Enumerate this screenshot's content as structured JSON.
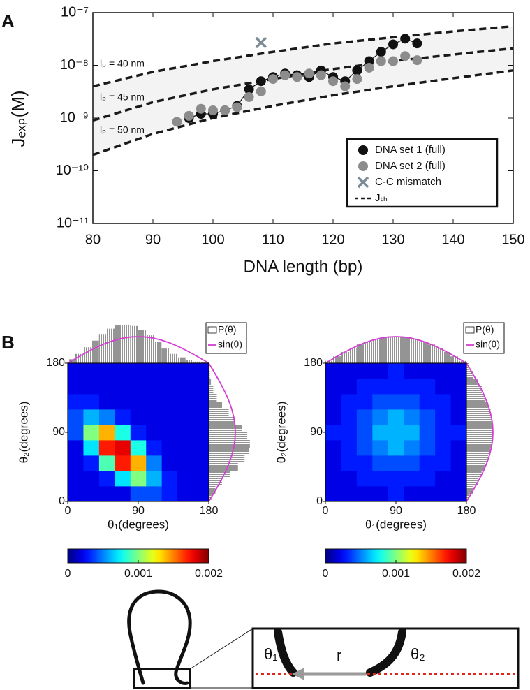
{
  "panel_labels": [
    "A",
    "B"
  ],
  "chart_data": [
    {
      "type": "line",
      "xlabel": "DNA length (bp)",
      "ylabel": "Jₑₓₚ(M)",
      "log_y": true,
      "xlim": [
        80,
        150
      ],
      "xticks": [
        80,
        90,
        100,
        110,
        120,
        130,
        140,
        150
      ],
      "ylim": [
        1e-11,
        1e-07
      ],
      "yticks": [
        {
          "value": 1e-11,
          "label": "10⁻¹¹"
        },
        {
          "value": 1e-10,
          "label": "10⁻¹⁰"
        },
        {
          "value": 1e-09,
          "label": "10⁻⁹"
        },
        {
          "value": 1e-08,
          "label": "10⁻⁸"
        },
        {
          "value": 1e-07,
          "label": "10⁻⁷"
        }
      ],
      "legend": "lower right",
      "series": [
        {
          "name": "DNA set 1 (full)",
          "color": "#111111",
          "marker": "circle",
          "line": true,
          "x": [
            96,
            98,
            100,
            102,
            104,
            106,
            108,
            110,
            112,
            114,
            116,
            118,
            120,
            122,
            124,
            126,
            128,
            130,
            132,
            134
          ],
          "values": [
            1e-09,
            1.2e-09,
            1.2e-09,
            1.4e-09,
            1.7e-09,
            3.5e-09,
            5e-09,
            6e-09,
            7e-09,
            6.5e-09,
            6e-09,
            8e-09,
            6e-09,
            5e-09,
            8e-09,
            1.2e-08,
            1.8e-08,
            2.5e-08,
            3.2e-08,
            2.6e-08
          ]
        },
        {
          "name": "DNA set 2 (full)",
          "color": "#8c8c8c",
          "marker": "circle",
          "line": false,
          "x": [
            94,
            96,
            98,
            100,
            102,
            104,
            106,
            108,
            110,
            112,
            114,
            116,
            118,
            120,
            122,
            124,
            126,
            128,
            130,
            132,
            134
          ],
          "values": [
            8.5e-10,
            1.1e-09,
            1.5e-09,
            1.4e-09,
            1.4e-09,
            1.6e-09,
            2.5e-09,
            3.2e-09,
            5.5e-09,
            6.5e-09,
            6e-09,
            7e-09,
            6.5e-09,
            5e-09,
            4e-09,
            5.5e-09,
            9e-09,
            1.2e-08,
            1.2e-08,
            1.5e-08,
            1.25e-08
          ]
        },
        {
          "name": "C-C mismatch",
          "color": "#7a8a96",
          "marker": "x",
          "line": false,
          "x": [
            108
          ],
          "values": [
            2.7e-08
          ]
        }
      ],
      "theory": {
        "name": "Jₜₕ",
        "color": "#1a1a1a",
        "band_color": "#f3f3f3",
        "x": [
          80,
          90,
          100,
          110,
          120,
          130,
          140,
          150
        ],
        "curves": [
          {
            "label": "lₚ = 40 nm",
            "values": [
              4e-09,
              7.5e-09,
              1.2e-08,
              1.8e-08,
              2.6e-08,
              3.4e-08,
              4.4e-08,
              5.5e-08
            ]
          },
          {
            "label": "lₚ = 45 nm",
            "values": [
              9e-10,
              2e-09,
              3.5e-09,
              5.5e-09,
              8.5e-09,
              1.2e-08,
              1.6e-08,
              2.1e-08
            ]
          },
          {
            "label": "lₚ = 50 nm",
            "values": [
              2e-10,
              5e-10,
              1e-09,
              1.7e-09,
              2.7e-09,
              4e-09,
              5.7e-09,
              8e-09
            ]
          }
        ]
      }
    },
    {
      "type": "heatmap",
      "xlabel": "θ₁(degrees)",
      "ylabel": "θ₂(degrees)",
      "xlim": [
        0,
        180
      ],
      "xticks": [
        0,
        90,
        180
      ],
      "ylim": [
        0,
        180
      ],
      "yticks": [
        0,
        90,
        180
      ],
      "edges": [
        0,
        20,
        40,
        60,
        80,
        100,
        120,
        140,
        160,
        180
      ],
      "z": [
        [
          0.0002,
          0.0002,
          0.0002,
          0.0002,
          0.0004,
          0.0004,
          0.0003,
          0.0002,
          0.0002
        ],
        [
          0.0002,
          0.0002,
          0.0003,
          0.0007,
          0.001,
          0.0006,
          0.0003,
          0.0002,
          0.0002
        ],
        [
          0.0002,
          0.0003,
          0.0009,
          0.0017,
          0.0014,
          0.0005,
          0.0002,
          0.0002,
          0.0002
        ],
        [
          0.0002,
          0.0007,
          0.0017,
          0.0018,
          0.0008,
          0.0003,
          0.0002,
          0.0002,
          0.0002
        ],
        [
          0.0004,
          0.001,
          0.0014,
          0.0008,
          0.0003,
          0.0002,
          0.0002,
          0.0002,
          0.0002
        ],
        [
          0.0004,
          0.0006,
          0.0005,
          0.0003,
          0.0002,
          0.0002,
          0.0002,
          0.0002,
          0.0002
        ],
        [
          0.0003,
          0.0003,
          0.0002,
          0.0002,
          0.0002,
          0.0002,
          0.0002,
          0.0002,
          0.0002
        ],
        [
          0.0002,
          0.0002,
          0.0002,
          0.0002,
          0.0002,
          0.0002,
          0.0002,
          0.0002,
          0.0002
        ],
        [
          0.0002,
          0.0002,
          0.0002,
          0.0002,
          0.0002,
          0.0002,
          0.0002,
          0.0002,
          0.0002
        ]
      ],
      "colorbar": {
        "colormap": "jet",
        "lim": [
          0,
          0.002
        ],
        "ticks": [
          0,
          0.001,
          0.002
        ]
      },
      "histogram": {
        "name": "P(θ)",
        "bins": [
          0,
          10,
          20,
          30,
          40,
          50,
          60,
          70,
          80,
          90,
          100,
          110,
          120,
          130,
          140,
          150,
          160,
          170,
          180
        ],
        "top": [
          0.15,
          0.35,
          0.6,
          0.85,
          1.1,
          1.3,
          1.42,
          1.45,
          1.4,
          1.25,
          1.05,
          0.8,
          0.55,
          0.35,
          0.22,
          0.12,
          0.06,
          0.03
        ],
        "right": [
          0.1,
          0.25,
          0.5,
          0.8,
          1.1,
          1.35,
          1.5,
          1.55,
          1.45,
          1.25,
          1.0,
          0.75,
          0.5,
          0.3,
          0.17,
          0.08,
          0.04,
          0.02
        ]
      },
      "curve": {
        "name": "sin(θ)",
        "color": "#d43fd4",
        "x": [
          0,
          10,
          20,
          30,
          40,
          50,
          60,
          70,
          80,
          90,
          100,
          110,
          120,
          130,
          140,
          150,
          160,
          170,
          180
        ],
        "values": [
          0,
          0.174,
          0.342,
          0.5,
          0.643,
          0.766,
          0.866,
          0.94,
          0.985,
          1,
          0.985,
          0.94,
          0.866,
          0.766,
          0.643,
          0.5,
          0.342,
          0.174,
          0
        ]
      }
    },
    {
      "type": "heatmap",
      "xlabel": "θ₁(degrees)",
      "ylabel": "θ₂(degrees)",
      "xlim": [
        0,
        180
      ],
      "xticks": [
        0,
        90,
        180
      ],
      "ylim": [
        0,
        180
      ],
      "yticks": [
        0,
        90,
        180
      ],
      "edges": [
        0,
        20,
        40,
        60,
        80,
        100,
        120,
        140,
        160,
        180
      ],
      "z": [
        [
          0.0002,
          0.0002,
          0.0002,
          0.0002,
          0.0003,
          0.0002,
          0.0002,
          0.0002,
          0.0002
        ],
        [
          0.0002,
          0.0002,
          0.0003,
          0.0003,
          0.0003,
          0.0003,
          0.0003,
          0.0002,
          0.0002
        ],
        [
          0.0002,
          0.0003,
          0.0003,
          0.0004,
          0.0004,
          0.0004,
          0.0003,
          0.0003,
          0.0002
        ],
        [
          0.0002,
          0.0003,
          0.0004,
          0.0005,
          0.0006,
          0.0005,
          0.0004,
          0.0003,
          0.0002
        ],
        [
          0.0003,
          0.0003,
          0.0004,
          0.0006,
          0.0006,
          0.0006,
          0.0004,
          0.0003,
          0.0003
        ],
        [
          0.0002,
          0.0003,
          0.0004,
          0.0005,
          0.0006,
          0.0005,
          0.0004,
          0.0003,
          0.0002
        ],
        [
          0.0002,
          0.0003,
          0.0003,
          0.0004,
          0.0004,
          0.0004,
          0.0003,
          0.0003,
          0.0002
        ],
        [
          0.0002,
          0.0002,
          0.0003,
          0.0003,
          0.0003,
          0.0003,
          0.0003,
          0.0002,
          0.0002
        ],
        [
          0.0002,
          0.0002,
          0.0002,
          0.0002,
          0.0003,
          0.0002,
          0.0002,
          0.0002,
          0.0002
        ]
      ],
      "colorbar": {
        "colormap": "jet",
        "lim": [
          0,
          0.002
        ],
        "ticks": [
          0,
          0.001,
          0.002
        ]
      },
      "histogram": {
        "name": "P(θ)",
        "bins": [
          0,
          10,
          20,
          30,
          40,
          50,
          60,
          70,
          80,
          90,
          100,
          110,
          120,
          130,
          140,
          150,
          160,
          170,
          180
        ],
        "top": [
          0.087,
          0.259,
          0.423,
          0.574,
          0.707,
          0.819,
          0.906,
          0.966,
          0.996,
          0.996,
          0.966,
          0.906,
          0.819,
          0.707,
          0.574,
          0.423,
          0.259,
          0.087
        ],
        "right": [
          0.09,
          0.25,
          0.43,
          0.57,
          0.71,
          0.82,
          0.9,
          0.97,
          0.99,
          1.0,
          0.96,
          0.91,
          0.82,
          0.7,
          0.58,
          0.42,
          0.26,
          0.09
        ]
      },
      "curve": {
        "name": "sin(θ)",
        "color": "#d43fd4",
        "x": [
          0,
          10,
          20,
          30,
          40,
          50,
          60,
          70,
          80,
          90,
          100,
          110,
          120,
          130,
          140,
          150,
          160,
          170,
          180
        ],
        "values": [
          0,
          0.174,
          0.342,
          0.5,
          0.643,
          0.766,
          0.866,
          0.94,
          0.985,
          1,
          0.985,
          0.94,
          0.866,
          0.766,
          0.643,
          0.5,
          0.342,
          0.174,
          0
        ]
      }
    }
  ],
  "schematic": {
    "theta1": "θ₁",
    "r": "r",
    "theta2": "θ₂"
  }
}
